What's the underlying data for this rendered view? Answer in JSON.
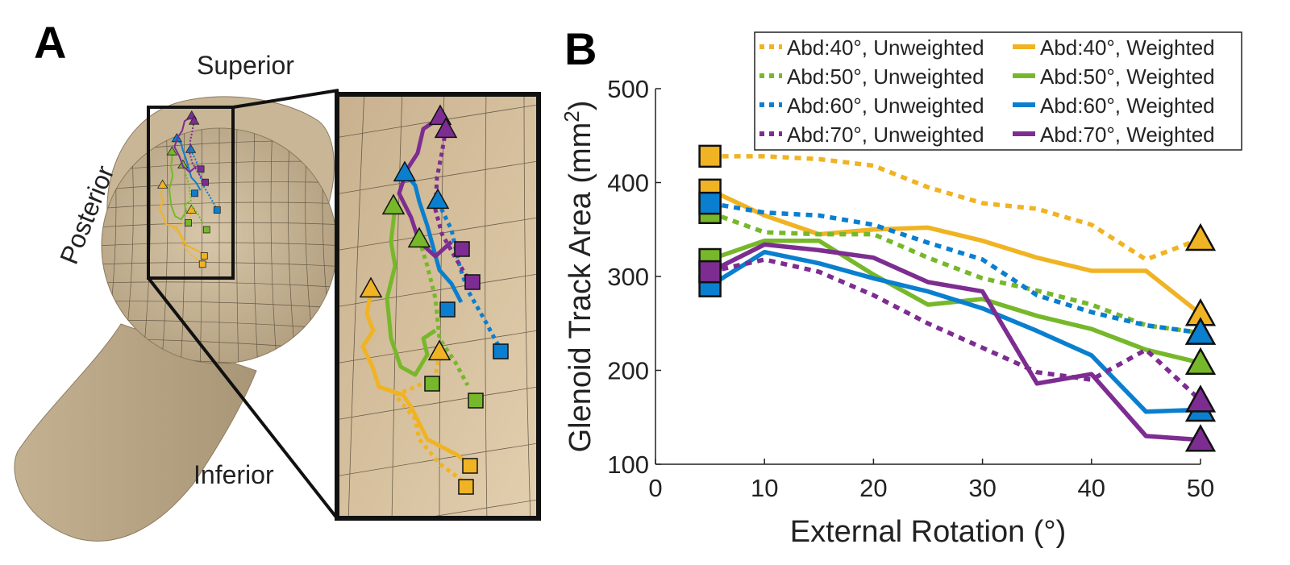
{
  "panel_a": {
    "label": "A",
    "anatomy_labels": {
      "superior": "Superior",
      "posterior": "Posterior",
      "inferior": "Inferior"
    },
    "bone_color": "#c4b294"
  },
  "panel_b": {
    "label": "B"
  },
  "chart_data": {
    "type": "line",
    "title": "",
    "xlabel": "External Rotation (°)",
    "ylabel": "Glenoid Track Area (mm²)",
    "ylabel_main": "Glenoid Track Area (mm",
    "ylabel_sup": "2",
    "ylabel_close": ")",
    "xlim": [
      0,
      50
    ],
    "ylim": [
      100,
      500
    ],
    "xticks": [
      0,
      10,
      20,
      30,
      40,
      50
    ],
    "yticks": [
      100,
      200,
      300,
      400,
      500
    ],
    "grid": false,
    "legend_position": "top-right",
    "start_marker": "square",
    "end_marker": "triangle",
    "series": [
      {
        "name": "Abd:40°, Unweighted",
        "color": "#f0b323",
        "style": "dotted",
        "x": [
          5,
          10,
          15,
          20,
          25,
          30,
          35,
          40,
          45,
          50
        ],
        "y": [
          428,
          428,
          425,
          418,
          395,
          378,
          372,
          355,
          318,
          340
        ]
      },
      {
        "name": "Abd:40°, Weighted",
        "color": "#f0b323",
        "style": "solid",
        "x": [
          5,
          10,
          15,
          20,
          25,
          30,
          35,
          40,
          45,
          50
        ],
        "y": [
          392,
          365,
          345,
          350,
          352,
          338,
          320,
          306,
          306,
          260
        ]
      },
      {
        "name": "Abd:50°, Unweighted",
        "color": "#77b82b",
        "style": "dotted",
        "x": [
          5,
          10,
          15,
          20,
          25,
          30,
          35,
          40,
          45,
          50
        ],
        "y": [
          368,
          347,
          345,
          345,
          320,
          298,
          285,
          270,
          248,
          240
        ]
      },
      {
        "name": "Abd:50°, Weighted",
        "color": "#77b82b",
        "style": "solid",
        "x": [
          5,
          10,
          15,
          20,
          25,
          30,
          35,
          40,
          45,
          50
        ],
        "y": [
          318,
          338,
          338,
          302,
          270,
          276,
          258,
          244,
          222,
          208
        ]
      },
      {
        "name": "Abd:60°, Unweighted",
        "color": "#0a7fcf",
        "style": "dotted",
        "x": [
          5,
          10,
          15,
          20,
          25,
          30,
          35,
          40,
          45,
          50
        ],
        "y": [
          378,
          368,
          365,
          355,
          336,
          318,
          280,
          262,
          248,
          240
        ]
      },
      {
        "name": "Abd:60°, Weighted",
        "color": "#0a7fcf",
        "style": "solid",
        "x": [
          5,
          10,
          15,
          20,
          25,
          30,
          35,
          40,
          45,
          50
        ],
        "y": [
          290,
          326,
          314,
          298,
          284,
          266,
          242,
          216,
          156,
          158
        ]
      },
      {
        "name": "Abd:70°, Unweighted",
        "color": "#7d2d91",
        "style": "dotted",
        "x": [
          5,
          10,
          15,
          20,
          25,
          30,
          35,
          40,
          45,
          50
        ],
        "y": [
          305,
          318,
          305,
          280,
          250,
          224,
          198,
          190,
          222,
          168
        ]
      },
      {
        "name": "Abd:70°, Weighted",
        "color": "#7d2d91",
        "style": "solid",
        "x": [
          5,
          10,
          15,
          20,
          25,
          30,
          35,
          40,
          45,
          50
        ],
        "y": [
          305,
          334,
          328,
          320,
          294,
          284,
          186,
          196,
          130,
          126
        ]
      }
    ]
  }
}
